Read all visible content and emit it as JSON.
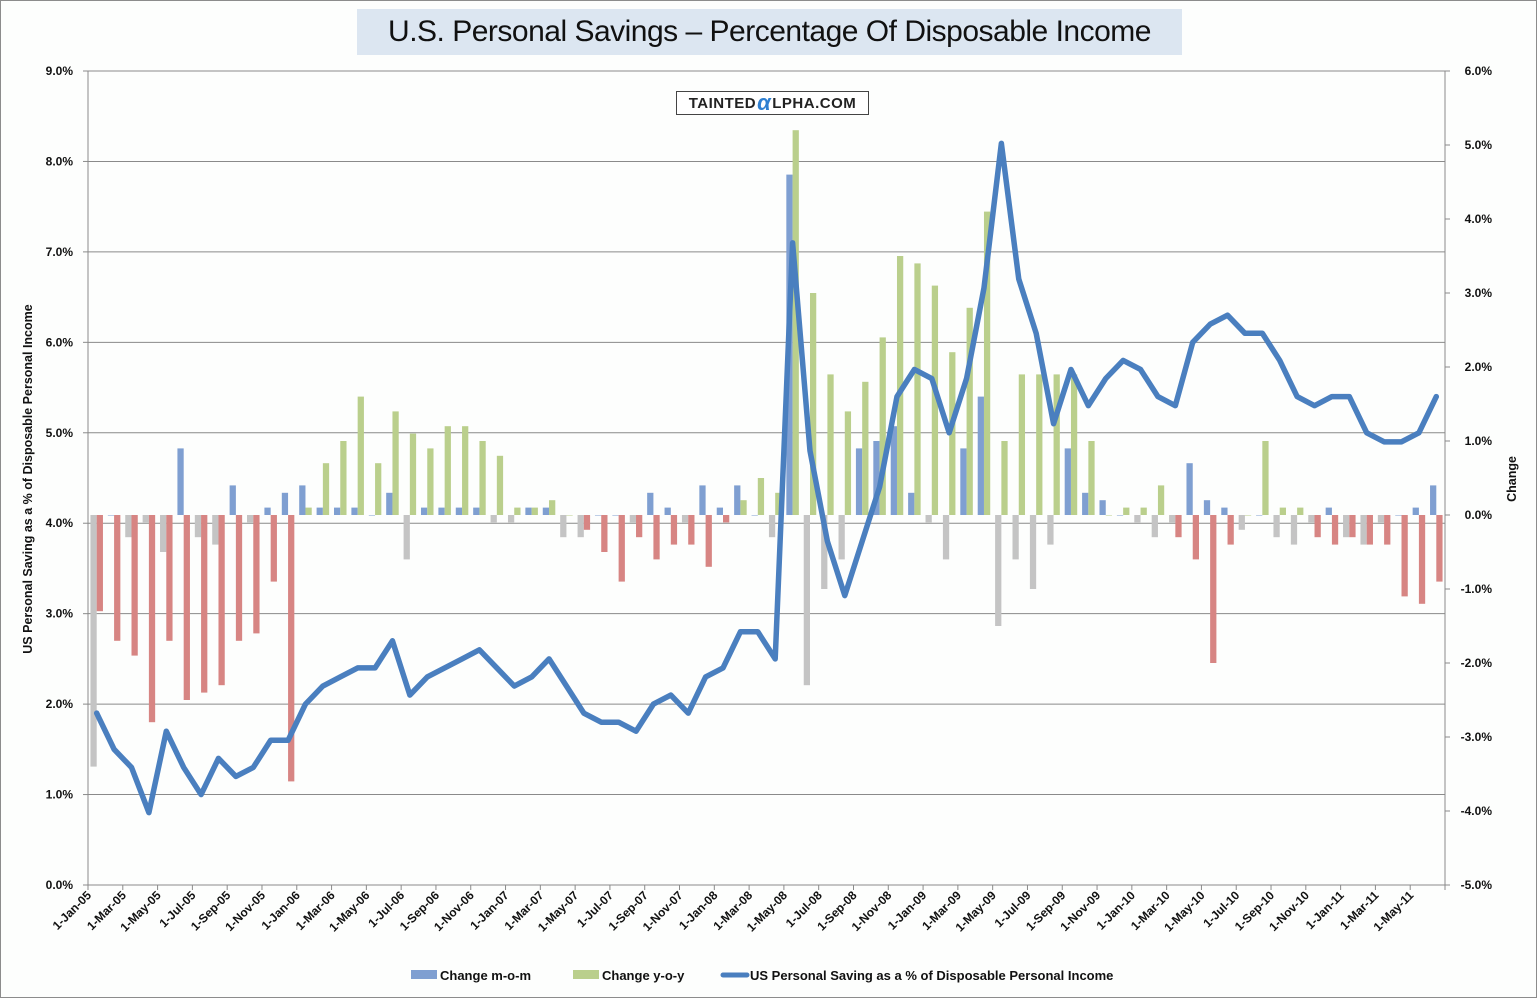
{
  "chart_data": {
    "type": "bar+line",
    "title": "U.S. Personal Savings – Percentage Of Disposable Income",
    "watermark": {
      "left": "TAINTED",
      "alpha": "α",
      "right": "LPHA.COM"
    },
    "ylabel_left": "US Personal Saving as a % of Disposable Personal Income",
    "ylabel_right": "Change",
    "ylim_left": [
      0,
      9
    ],
    "ylim_right": [
      -5,
      6
    ],
    "left_ticks": [
      "0.0%",
      "1.0%",
      "2.0%",
      "3.0%",
      "4.0%",
      "5.0%",
      "6.0%",
      "7.0%",
      "8.0%",
      "9.0%"
    ],
    "right_ticks": [
      "-5.0%",
      "-4.0%",
      "-3.0%",
      "-2.0%",
      "-1.0%",
      "0.0%",
      "1.0%",
      "2.0%",
      "3.0%",
      "4.0%",
      "5.0%",
      "6.0%"
    ],
    "x_tick_labels": [
      "1-Jan-05",
      "1-Mar-05",
      "1-May-05",
      "1-Jul-05",
      "1-Sep-05",
      "1-Nov-05",
      "1-Jan-06",
      "1-Mar-06",
      "1-May-06",
      "1-Jul-06",
      "1-Sep-06",
      "1-Nov-06",
      "1-Jan-07",
      "1-Mar-07",
      "1-May-07",
      "1-Jul-07",
      "1-Sep-07",
      "1-Nov-07",
      "1-Jan-08",
      "1-Mar-08",
      "1-May-08",
      "1-Jul-08",
      "1-Sep-08",
      "1-Nov-08",
      "1-Jan-09",
      "1-Mar-09",
      "1-May-09",
      "1-Jul-09",
      "1-Sep-09",
      "1-Nov-09",
      "1-Jan-10",
      "1-Mar-10",
      "1-May-10",
      "1-Jul-10",
      "1-Sep-10",
      "1-Nov-10",
      "1-Jan-11",
      "1-Mar-11",
      "1-May-11"
    ],
    "grid": true,
    "legend_position": "bottom",
    "colors": {
      "mom_positive": "#7f9fd1",
      "mom_negative": "#c4c4c4",
      "yoy_positive": "#bacf8c",
      "yoy_negative": "#d78583",
      "line": "#4a7fbf",
      "grid": "#8a8a8a"
    },
    "series": [
      {
        "name": "Change m-o-m",
        "axis": "right",
        "values": [
          -3.4,
          0.0,
          -0.3,
          -0.1,
          -0.5,
          0.9,
          -0.3,
          -0.4,
          0.4,
          -0.1,
          0.1,
          0.3,
          0.4,
          0.1,
          0.1,
          0.1,
          0.0,
          0.3,
          -0.6,
          0.1,
          0.1,
          0.1,
          0.1,
          -0.1,
          -0.1,
          0.1,
          0.1,
          -0.3,
          -0.3,
          0.0,
          0.0,
          -0.1,
          0.3,
          0.1,
          -0.1,
          0.4,
          0.1,
          0.4,
          0.0,
          -0.3,
          4.6,
          -2.3,
          -1.0,
          -0.6,
          0.9,
          1.0,
          1.2,
          0.3,
          -0.1,
          -0.6,
          0.9,
          1.6,
          -1.5,
          -0.6,
          -1.0,
          -0.4,
          0.9,
          0.3,
          0.2,
          0.0,
          -0.1,
          -0.3,
          -0.1,
          0.7,
          0.2,
          0.1,
          -0.2,
          0.0,
          -0.3,
          -0.4,
          -0.1,
          0.1,
          -0.3,
          -0.4,
          -0.1,
          0.0,
          0.1,
          0.4
        ]
      },
      {
        "name": "Change y-o-y",
        "axis": "right",
        "values": [
          -1.3,
          -1.7,
          -1.9,
          -2.8,
          -1.7,
          -2.5,
          -2.4,
          -2.3,
          -1.7,
          -1.6,
          -0.9,
          -3.6,
          0.1,
          0.7,
          1.0,
          1.6,
          0.7,
          1.4,
          1.1,
          0.9,
          1.2,
          1.2,
          1.0,
          0.8,
          0.1,
          0.1,
          0.2,
          0.0,
          -0.2,
          -0.5,
          -0.9,
          -0.3,
          -0.6,
          -0.4,
          -0.4,
          -0.7,
          -0.1,
          0.2,
          0.5,
          0.3,
          5.2,
          3.0,
          1.9,
          1.4,
          1.8,
          2.4,
          3.5,
          3.4,
          3.1,
          2.2,
          2.8,
          4.1,
          1.0,
          1.9,
          1.9,
          1.9,
          1.9,
          1.0,
          0.0,
          0.1,
          0.1,
          0.4,
          -0.3,
          -0.6,
          -2.0,
          -0.4,
          0.0,
          1.0,
          0.1,
          0.1,
          -0.3,
          -0.4,
          -0.3,
          -0.4,
          -0.4,
          -1.1,
          -1.2,
          -0.9
        ]
      },
      {
        "name": "US Personal Saving as a % of Disposable Personal Income",
        "axis": "left",
        "type": "line",
        "values": [
          1.9,
          1.5,
          1.3,
          0.8,
          1.7,
          1.3,
          1.0,
          1.4,
          1.2,
          1.3,
          1.6,
          1.6,
          2.0,
          2.2,
          2.3,
          2.4,
          2.4,
          2.7,
          2.1,
          2.3,
          2.4,
          2.5,
          2.6,
          2.4,
          2.2,
          2.3,
          2.5,
          2.2,
          1.9,
          1.8,
          1.8,
          1.7,
          2.0,
          2.1,
          1.9,
          2.3,
          2.4,
          2.8,
          2.8,
          2.5,
          7.1,
          4.8,
          3.8,
          3.2,
          3.8,
          4.4,
          5.4,
          5.7,
          5.6,
          5.0,
          5.6,
          6.6,
          8.2,
          6.7,
          6.1,
          5.1,
          5.7,
          5.3,
          5.6,
          5.8,
          5.7,
          5.4,
          5.3,
          6.0,
          6.2,
          6.3,
          6.1,
          6.1,
          5.8,
          5.4,
          5.3,
          5.4,
          5.4,
          5.0,
          4.9,
          4.9,
          5.0,
          5.4
        ]
      }
    ],
    "legend": [
      {
        "label": "Change m-o-m",
        "kind": "box",
        "color": "#7f9fd1"
      },
      {
        "label": "Change y-o-y",
        "kind": "box",
        "color": "#bacf8c"
      },
      {
        "label": "US Personal Saving as a % of Disposable Personal Income",
        "kind": "line",
        "color": "#4a7fbf"
      }
    ]
  }
}
